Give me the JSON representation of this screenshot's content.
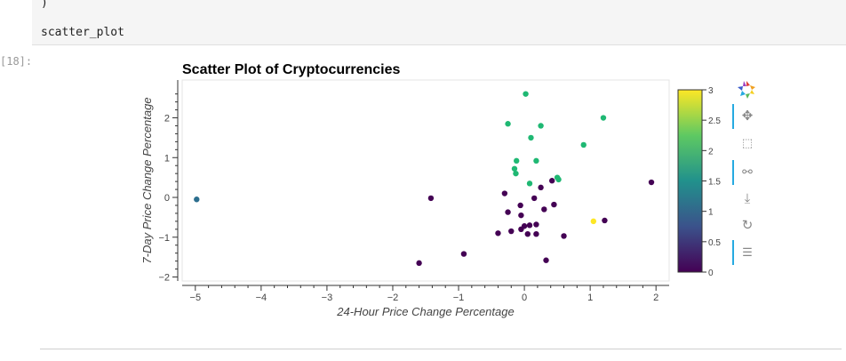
{
  "notebook": {
    "code_line_1": ")",
    "code_line_2": "scatter_plot",
    "prompt": "[18]:"
  },
  "chart_data": {
    "type": "scatter",
    "title": "Scatter Plot of Cryptocurrencies",
    "xlabel": "24-Hour Price Change Percentage",
    "ylabel": "7-Day Price Change Percentage",
    "xlim": [
      -5.2,
      2.2
    ],
    "ylim": [
      -2.1,
      2.95
    ],
    "xticks": [
      -5,
      -4,
      -3,
      -2,
      -1,
      0,
      1,
      2
    ],
    "xtick_labels": [
      "−5",
      "−4",
      "−3",
      "−2",
      "−1",
      "0",
      "1",
      "2"
    ],
    "yticks": [
      -2,
      -1,
      0,
      1,
      2
    ],
    "ytick_labels": [
      "−2",
      "−1",
      "0",
      "1",
      "2"
    ],
    "colorbar": {
      "range": [
        0,
        3
      ],
      "ticks": [
        "0",
        "0.5",
        "1",
        "1.5",
        "2",
        "2.5",
        "3"
      ],
      "colormap": "viridis",
      "colors": [
        "#440154",
        "#3b528b",
        "#21918c",
        "#5ec962",
        "#fde725"
      ]
    },
    "points": [
      {
        "x": -4.98,
        "y": -0.05,
        "c": 1
      },
      {
        "x": 1.05,
        "y": -0.6,
        "c": 3
      },
      {
        "x": -0.25,
        "y": 1.85,
        "c": 2
      },
      {
        "x": 0.02,
        "y": 2.6,
        "c": 2
      },
      {
        "x": 0.25,
        "y": 1.8,
        "c": 2
      },
      {
        "x": 1.2,
        "y": 2.0,
        "c": 2
      },
      {
        "x": 0.1,
        "y": 1.5,
        "c": 2
      },
      {
        "x": 0.9,
        "y": 1.32,
        "c": 2
      },
      {
        "x": -0.12,
        "y": 0.92,
        "c": 2
      },
      {
        "x": 0.18,
        "y": 0.92,
        "c": 2
      },
      {
        "x": -0.15,
        "y": 0.72,
        "c": 2
      },
      {
        "x": -0.13,
        "y": 0.6,
        "c": 2
      },
      {
        "x": 0.5,
        "y": 0.5,
        "c": 2
      },
      {
        "x": 0.52,
        "y": 0.45,
        "c": 2
      },
      {
        "x": 0.08,
        "y": 0.35,
        "c": 2
      },
      {
        "x": 0.42,
        "y": 0.42,
        "c": 0
      },
      {
        "x": 0.25,
        "y": 0.25,
        "c": 0
      },
      {
        "x": -0.3,
        "y": 0.1,
        "c": 0
      },
      {
        "x": 0.15,
        "y": -0.02,
        "c": 0
      },
      {
        "x": -1.42,
        "y": -0.02,
        "c": 0
      },
      {
        "x": -0.06,
        "y": -0.2,
        "c": 0
      },
      {
        "x": 0.3,
        "y": -0.3,
        "c": 0
      },
      {
        "x": 0.45,
        "y": -0.18,
        "c": 0
      },
      {
        "x": -0.25,
        "y": -0.37,
        "c": 0
      },
      {
        "x": -0.05,
        "y": -0.45,
        "c": 0
      },
      {
        "x": 1.93,
        "y": 0.38,
        "c": 0
      },
      {
        "x": 1.22,
        "y": -0.58,
        "c": 0
      },
      {
        "x": 0.0,
        "y": -0.72,
        "c": 0
      },
      {
        "x": 0.08,
        "y": -0.7,
        "c": 0
      },
      {
        "x": 0.18,
        "y": -0.68,
        "c": 0
      },
      {
        "x": -0.05,
        "y": -0.8,
        "c": 0
      },
      {
        "x": -0.2,
        "y": -0.85,
        "c": 0
      },
      {
        "x": -0.4,
        "y": -0.9,
        "c": 0
      },
      {
        "x": 0.05,
        "y": -0.92,
        "c": 0
      },
      {
        "x": 0.18,
        "y": -0.92,
        "c": 0
      },
      {
        "x": 0.6,
        "y": -0.97,
        "c": 0
      },
      {
        "x": -0.92,
        "y": -1.42,
        "c": 0
      },
      {
        "x": 0.33,
        "y": -1.58,
        "c": 0
      },
      {
        "x": -1.6,
        "y": -1.65,
        "c": 0
      }
    ]
  },
  "toolbar": {
    "tools": [
      "pan",
      "box zoom",
      "wheel zoom",
      "save",
      "reset",
      "hover"
    ]
  },
  "icons": {
    "logo": "bokeh-logo-icon",
    "pan": "pan-icon",
    "box_zoom": "box-zoom-icon",
    "wheel_zoom": "wheel-zoom-icon",
    "save": "save-icon",
    "reset": "reset-icon",
    "hover": "hover-icon"
  }
}
